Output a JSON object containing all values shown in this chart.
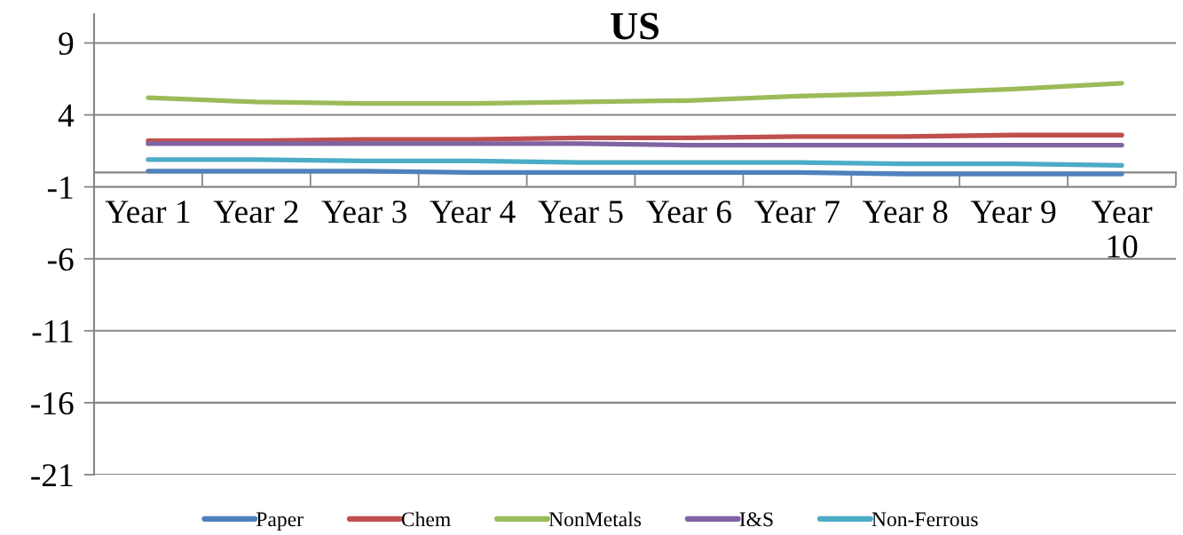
{
  "chart_data": {
    "type": "line",
    "title": "US",
    "categories": [
      "Year 1",
      "Year 2",
      "Year 3",
      "Year 4",
      "Year 5",
      "Year 6",
      "Year 7",
      "Year 8",
      "Year 9",
      "Year 10"
    ],
    "series": [
      {
        "name": "Paper",
        "color": "#4f81bd",
        "values": [
          0.1,
          0.1,
          0.1,
          0.0,
          0.0,
          0.0,
          0.0,
          -0.1,
          -0.1,
          -0.1
        ]
      },
      {
        "name": "Chem",
        "color": "#c0504d",
        "values": [
          2.2,
          2.2,
          2.3,
          2.3,
          2.4,
          2.4,
          2.5,
          2.5,
          2.6,
          2.6
        ]
      },
      {
        "name": "NonMetals",
        "color": "#9bbb59",
        "values": [
          5.2,
          4.9,
          4.8,
          4.8,
          4.9,
          5.0,
          5.3,
          5.5,
          5.8,
          6.2
        ]
      },
      {
        "name": "I&S",
        "color": "#8064a2",
        "values": [
          2.0,
          2.0,
          2.0,
          2.0,
          2.0,
          1.9,
          1.9,
          1.9,
          1.9,
          1.9
        ]
      },
      {
        "name": "Non-Ferrous",
        "color": "#4bacc6",
        "values": [
          0.9,
          0.9,
          0.8,
          0.8,
          0.7,
          0.7,
          0.7,
          0.6,
          0.6,
          0.5
        ]
      }
    ],
    "ylim": [
      -21,
      11
    ],
    "yticks": [
      -21,
      -16,
      -11,
      -6,
      -1,
      4,
      9
    ],
    "grid": "y",
    "legend": "bottom"
  }
}
